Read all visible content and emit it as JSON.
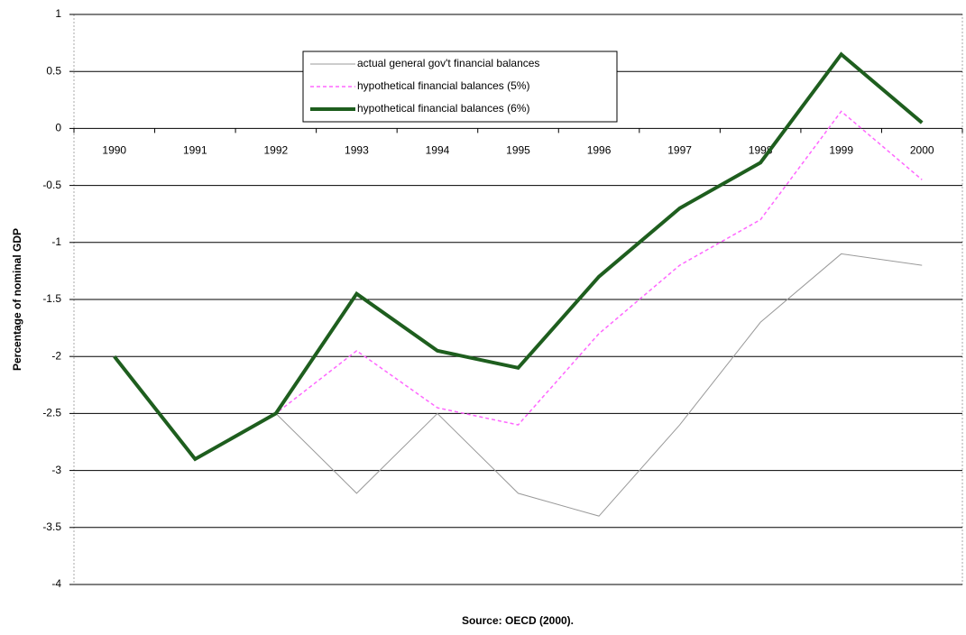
{
  "chart_data": {
    "type": "line",
    "y_axis_label": "Percentage of nominal GDP",
    "source": "Source: OECD (2000).",
    "categories": [
      "1990",
      "1991",
      "1992",
      "1993",
      "1994",
      "1995",
      "1996",
      "1997",
      "1998",
      "1999",
      "2000"
    ],
    "series": [
      {
        "name": "actual general gov't financial balances",
        "color": "#999999",
        "values": [
          -2,
          -2.9,
          -2.5,
          -3.2,
          -2.5,
          -3.2,
          -3.4,
          -2.6,
          -1.7,
          -1.1,
          -1.2
        ]
      },
      {
        "name": "hypothetical financial balances (5%)",
        "color": "#ff66ff",
        "values": [
          -2,
          -2.9,
          -2.5,
          -1.95,
          -2.45,
          -2.6,
          -1.8,
          -1.2,
          -0.8,
          0.15,
          -0.45
        ]
      },
      {
        "name": "hypothetical financial balances (6%)",
        "color": "#1e5e1e",
        "values": [
          -2,
          -2.9,
          -2.5,
          -1.45,
          -1.95,
          -2.1,
          -1.3,
          -0.7,
          -0.3,
          0.65,
          0.05
        ]
      }
    ],
    "ylim": [
      -4,
      1
    ],
    "yticks": [
      -4,
      -3.5,
      -3,
      -2.5,
      -2,
      -1.5,
      -1,
      -0.5,
      0,
      0.5,
      1
    ],
    "grid": true
  }
}
